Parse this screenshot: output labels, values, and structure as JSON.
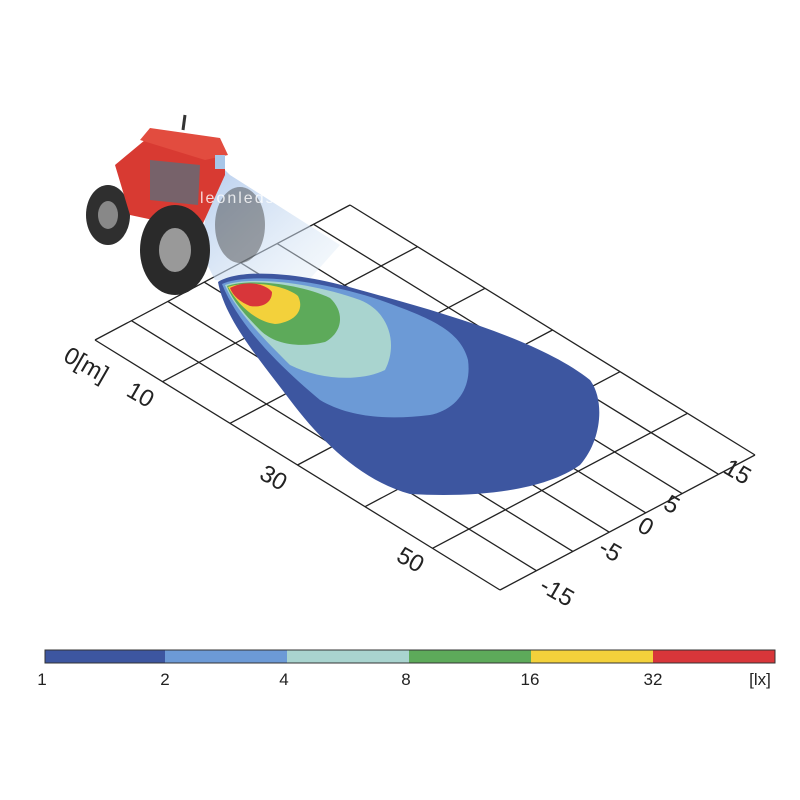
{
  "watermark": "leonleds.com",
  "distance_axis": {
    "unit_label": "0[m]",
    "labels": [
      "10",
      "30",
      "50"
    ]
  },
  "lateral_axis": {
    "labels": [
      "15",
      "5",
      "0",
      "-5",
      "-15"
    ]
  },
  "color_scale": {
    "labels": [
      "1",
      "2",
      "4",
      "8",
      "16",
      "32"
    ],
    "unit": "[lx]"
  }
}
